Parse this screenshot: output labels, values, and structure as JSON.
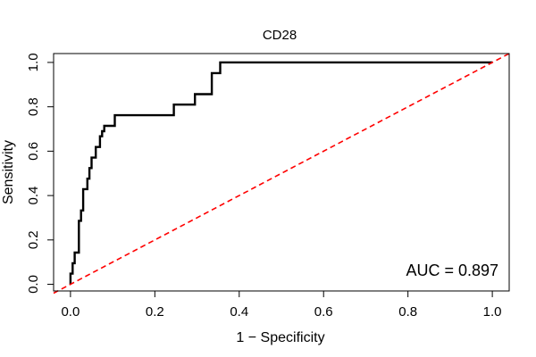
{
  "chart_data": {
    "type": "line",
    "title": "CD28",
    "xlabel": "1 − Specificity",
    "ylabel": "Sensitivity",
    "xlim": [
      -0.04,
      1.04
    ],
    "ylim": [
      -0.03,
      1.04
    ],
    "x_ticks": [
      0.0,
      0.2,
      0.4,
      0.6,
      0.8,
      1.0
    ],
    "x_tick_labels": [
      "0.0",
      "0.2",
      "0.4",
      "0.6",
      "0.8",
      "1.0"
    ],
    "y_ticks": [
      0.0,
      0.2,
      0.4,
      0.6,
      0.8,
      1.0
    ],
    "y_tick_labels": [
      "0.0",
      "0.2",
      "0.4",
      "0.6",
      "0.8",
      "1.0"
    ],
    "grid": false,
    "annotation": "AUC = 0.897",
    "series": [
      {
        "style": "solid",
        "color": "#000000",
        "x": [
          0.0,
          0.0,
          0.005,
          0.005,
          0.01,
          0.01,
          0.02,
          0.02,
          0.025,
          0.025,
          0.03,
          0.03,
          0.04,
          0.04,
          0.045,
          0.045,
          0.05,
          0.05,
          0.06,
          0.06,
          0.07,
          0.07,
          0.075,
          0.075,
          0.08,
          0.08,
          0.105,
          0.105,
          0.245,
          0.245,
          0.295,
          0.295,
          0.335,
          0.335,
          0.355,
          0.355,
          1.0
        ],
        "y": [
          0.0,
          0.048,
          0.048,
          0.095,
          0.095,
          0.143,
          0.143,
          0.286,
          0.286,
          0.333,
          0.333,
          0.429,
          0.429,
          0.476,
          0.476,
          0.524,
          0.524,
          0.571,
          0.571,
          0.619,
          0.619,
          0.667,
          0.667,
          0.69,
          0.69,
          0.714,
          0.714,
          0.762,
          0.762,
          0.81,
          0.81,
          0.857,
          0.857,
          0.952,
          0.952,
          1.0,
          1.0
        ]
      },
      {
        "style": "dashed",
        "color": "#ff0000",
        "x": [
          -0.04,
          1.04
        ],
        "y": [
          -0.04,
          1.04
        ]
      }
    ]
  }
}
